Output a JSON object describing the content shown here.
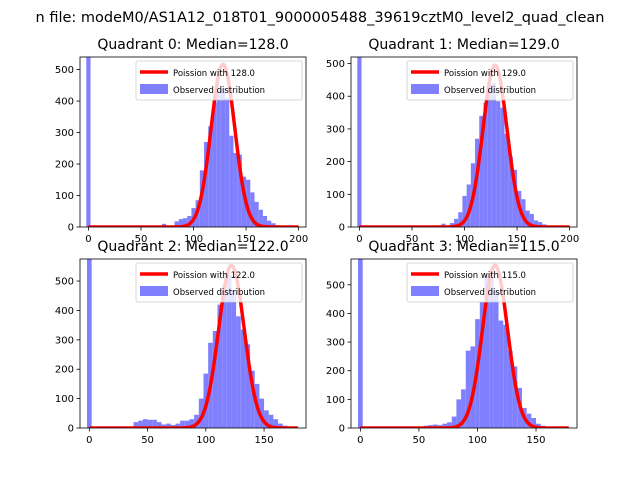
{
  "suptitle": "n file: modeM0/AS1A12_018T01_9000005488_39619cztM0_level2_quad_clean",
  "chart_data": [
    {
      "type": "bar",
      "title": "Quadrant 0: Median=128.0",
      "xlim": [
        -8,
        207
      ],
      "ylim": [
        0,
        540
      ],
      "xticks": [
        0,
        50,
        100,
        150,
        200
      ],
      "yticks": [
        0,
        100,
        200,
        300,
        400,
        500
      ],
      "grid": false,
      "legend_position": "upper right",
      "legend": [
        "Poission with 128.0",
        "Observed distribution"
      ],
      "median": 128.0,
      "curve_peak": 517,
      "curve_sigma": 11.3,
      "hist_bin_width": 4,
      "hist": [
        {
          "x": 0,
          "y": 540
        },
        {
          "x": 72,
          "y": 10
        },
        {
          "x": 84,
          "y": 18
        },
        {
          "x": 88,
          "y": 25
        },
        {
          "x": 92,
          "y": 28
        },
        {
          "x": 96,
          "y": 35
        },
        {
          "x": 100,
          "y": 60
        },
        {
          "x": 104,
          "y": 85
        },
        {
          "x": 108,
          "y": 180
        },
        {
          "x": 112,
          "y": 270
        },
        {
          "x": 116,
          "y": 320
        },
        {
          "x": 120,
          "y": 395
        },
        {
          "x": 124,
          "y": 435
        },
        {
          "x": 128,
          "y": 440
        },
        {
          "x": 132,
          "y": 410
        },
        {
          "x": 136,
          "y": 290
        },
        {
          "x": 140,
          "y": 235
        },
        {
          "x": 144,
          "y": 230
        },
        {
          "x": 148,
          "y": 160
        },
        {
          "x": 152,
          "y": 150
        },
        {
          "x": 156,
          "y": 110
        },
        {
          "x": 160,
          "y": 80
        },
        {
          "x": 164,
          "y": 55
        },
        {
          "x": 168,
          "y": 35
        },
        {
          "x": 172,
          "y": 20
        },
        {
          "x": 176,
          "y": 12
        },
        {
          "x": 180,
          "y": 6
        },
        {
          "x": 184,
          "y": 4
        },
        {
          "x": 188,
          "y": 3
        },
        {
          "x": 192,
          "y": 2
        }
      ]
    },
    {
      "type": "bar",
      "title": "Quadrant 1: Median=129.0",
      "xlim": [
        -8,
        207
      ],
      "ylim": [
        0,
        520
      ],
      "xticks": [
        0,
        50,
        100,
        150,
        200
      ],
      "yticks": [
        0,
        100,
        200,
        300,
        400,
        500
      ],
      "grid": false,
      "legend_position": "upper right",
      "legend": [
        "Poission with 129.0",
        "Observed distribution"
      ],
      "median": 129.0,
      "curve_peak": 495,
      "curve_sigma": 11.4,
      "hist_bin_width": 4,
      "hist": [
        {
          "x": 0,
          "y": 520
        },
        {
          "x": 76,
          "y": 5
        },
        {
          "x": 80,
          "y": 10
        },
        {
          "x": 88,
          "y": 12
        },
        {
          "x": 92,
          "y": 25
        },
        {
          "x": 96,
          "y": 45
        },
        {
          "x": 100,
          "y": 95
        },
        {
          "x": 104,
          "y": 130
        },
        {
          "x": 108,
          "y": 195
        },
        {
          "x": 112,
          "y": 270
        },
        {
          "x": 116,
          "y": 340
        },
        {
          "x": 120,
          "y": 380
        },
        {
          "x": 124,
          "y": 435
        },
        {
          "x": 128,
          "y": 440
        },
        {
          "x": 132,
          "y": 385
        },
        {
          "x": 136,
          "y": 365
        },
        {
          "x": 140,
          "y": 285
        },
        {
          "x": 144,
          "y": 215
        },
        {
          "x": 148,
          "y": 175
        },
        {
          "x": 152,
          "y": 110
        },
        {
          "x": 156,
          "y": 85
        },
        {
          "x": 160,
          "y": 50
        },
        {
          "x": 164,
          "y": 40
        },
        {
          "x": 168,
          "y": 20
        },
        {
          "x": 172,
          "y": 15
        },
        {
          "x": 176,
          "y": 8
        },
        {
          "x": 180,
          "y": 4
        }
      ]
    },
    {
      "type": "bar",
      "title": "Quadrant 2: Median=122.0",
      "xlim": [
        -8,
        186
      ],
      "ylim": [
        0,
        575
      ],
      "xticks": [
        0,
        50,
        100,
        150
      ],
      "yticks": [
        0,
        100,
        200,
        300,
        400,
        500
      ],
      "grid": false,
      "legend_position": "upper right",
      "legend": [
        "Poission with 122.0",
        "Observed distribution"
      ],
      "median": 122.0,
      "curve_peak": 553,
      "curve_sigma": 11.0,
      "hist_bin_width": 4,
      "hist": [
        {
          "x": 0,
          "y": 575
        },
        {
          "x": 40,
          "y": 20
        },
        {
          "x": 44,
          "y": 25
        },
        {
          "x": 48,
          "y": 30
        },
        {
          "x": 52,
          "y": 28
        },
        {
          "x": 56,
          "y": 28
        },
        {
          "x": 60,
          "y": 20
        },
        {
          "x": 64,
          "y": 12
        },
        {
          "x": 68,
          "y": 15
        },
        {
          "x": 72,
          "y": 10
        },
        {
          "x": 76,
          "y": 15
        },
        {
          "x": 80,
          "y": 25
        },
        {
          "x": 84,
          "y": 25
        },
        {
          "x": 88,
          "y": 30
        },
        {
          "x": 92,
          "y": 45
        },
        {
          "x": 96,
          "y": 100
        },
        {
          "x": 100,
          "y": 185
        },
        {
          "x": 104,
          "y": 290
        },
        {
          "x": 108,
          "y": 330
        },
        {
          "x": 112,
          "y": 420
        },
        {
          "x": 116,
          "y": 480
        },
        {
          "x": 120,
          "y": 520
        },
        {
          "x": 124,
          "y": 470
        },
        {
          "x": 128,
          "y": 380
        },
        {
          "x": 132,
          "y": 335
        },
        {
          "x": 136,
          "y": 285
        },
        {
          "x": 140,
          "y": 195
        },
        {
          "x": 144,
          "y": 150
        },
        {
          "x": 148,
          "y": 100
        },
        {
          "x": 152,
          "y": 60
        },
        {
          "x": 156,
          "y": 45
        },
        {
          "x": 160,
          "y": 30
        },
        {
          "x": 164,
          "y": 15
        },
        {
          "x": 168,
          "y": 8
        },
        {
          "x": 172,
          "y": 4
        },
        {
          "x": 176,
          "y": 2
        }
      ]
    },
    {
      "type": "bar",
      "title": "Quadrant 3: Median=115.0",
      "xlim": [
        -8,
        185
      ],
      "ylim": [
        0,
        590
      ],
      "xticks": [
        0,
        50,
        100,
        150
      ],
      "yticks": [
        0,
        100,
        200,
        300,
        400,
        500
      ],
      "grid": false,
      "legend_position": "upper right",
      "legend": [
        "Poission with 115.0",
        "Observed distribution"
      ],
      "median": 115.0,
      "curve_peak": 568,
      "curve_sigma": 10.7,
      "hist_bin_width": 4,
      "hist": [
        {
          "x": 0,
          "y": 590
        },
        {
          "x": 52,
          "y": 5
        },
        {
          "x": 56,
          "y": 8
        },
        {
          "x": 60,
          "y": 10
        },
        {
          "x": 64,
          "y": 12
        },
        {
          "x": 68,
          "y": 10
        },
        {
          "x": 72,
          "y": 15
        },
        {
          "x": 76,
          "y": 20
        },
        {
          "x": 80,
          "y": 40
        },
        {
          "x": 84,
          "y": 100
        },
        {
          "x": 88,
          "y": 135
        },
        {
          "x": 92,
          "y": 270
        },
        {
          "x": 96,
          "y": 285
        },
        {
          "x": 100,
          "y": 380
        },
        {
          "x": 104,
          "y": 440
        },
        {
          "x": 108,
          "y": 540
        },
        {
          "x": 112,
          "y": 540
        },
        {
          "x": 116,
          "y": 480
        },
        {
          "x": 120,
          "y": 375
        },
        {
          "x": 124,
          "y": 360
        },
        {
          "x": 128,
          "y": 270
        },
        {
          "x": 132,
          "y": 215
        },
        {
          "x": 136,
          "y": 140
        },
        {
          "x": 140,
          "y": 70
        },
        {
          "x": 144,
          "y": 50
        },
        {
          "x": 148,
          "y": 35
        },
        {
          "x": 152,
          "y": 15
        },
        {
          "x": 156,
          "y": 8
        },
        {
          "x": 160,
          "y": 5
        }
      ]
    }
  ],
  "colors": {
    "hist": "#8080ff",
    "curve": "#ff0000",
    "axis": "#000000"
  }
}
